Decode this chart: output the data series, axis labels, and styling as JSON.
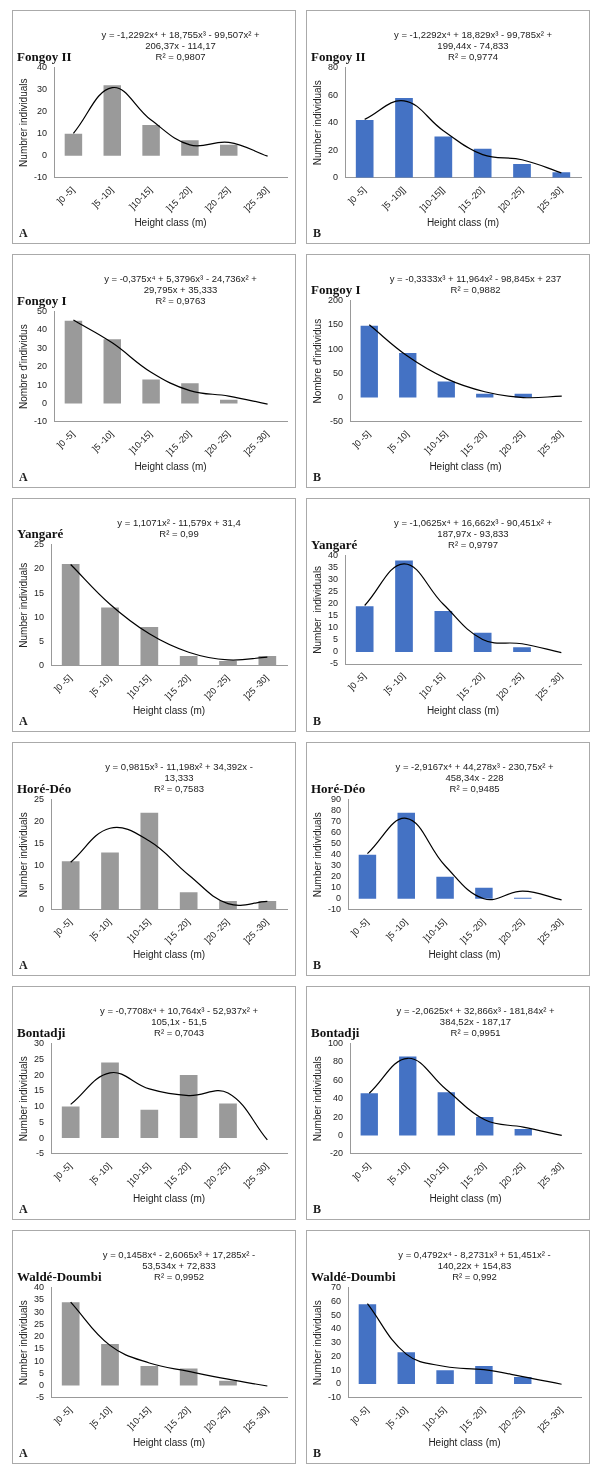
{
  "chart_data": [
    {
      "type": "bar",
      "title": "Fongoy II",
      "xlabel": "Height class (m)",
      "ylabel": "Numbrer individuals",
      "categories": [
        "]0 -5]",
        "]5 -10]",
        "]10-15]",
        "]15 -20]",
        "]20 -25]",
        "]25 -30]"
      ],
      "series": [
        {
          "color": "#9a9a9a",
          "values": [
            10,
            32,
            14,
            7,
            5,
            0
          ]
        },
        {
          "type": "line",
          "color": "#000000",
          "values": [
            10.2,
            30.9,
            16.2,
            4.9,
            6.1,
            -0.2
          ]
        }
      ],
      "ylim": [
        -10,
        40
      ],
      "yticks": [
        -10,
        0,
        10,
        20,
        30,
        40
      ],
      "marker": "none",
      "annotations": [
        "y = -1,2292x⁴ + 18,755x³ - 99,507x² +",
        "206,37x - 114,17",
        "R² = 0,9807",
        "A"
      ]
    },
    {
      "type": "bar",
      "title": "Fongoy II",
      "xlabel": "Height class (m)",
      "ylabel": "Number individuals",
      "categories": [
        "]0 -5]",
        "]5 -10]]",
        "]10-15]]",
        "]15 -20]",
        "]20 -25]",
        "]25 -30]"
      ],
      "series": [
        {
          "color": "#4472c4",
          "values": [
            42,
            58,
            30,
            21,
            10,
            4
          ]
        },
        {
          "type": "line",
          "color": "#000000",
          "values": [
            42.4,
            55.9,
            34.2,
            16.8,
            13.1,
            3.6
          ]
        }
      ],
      "ylim": [
        0,
        80
      ],
      "yticks": [
        0,
        20,
        40,
        60,
        80
      ],
      "marker": "none",
      "annotations": [
        "y = -1,2292x⁴ + 18,829x³ - 99,785x² +",
        "199,44x - 74,833",
        "R² = 0,9774",
        "B"
      ]
    },
    {
      "type": "bar",
      "title": "Fongoy I",
      "xlabel": "Height class (m)",
      "ylabel": "Nombre d'individus",
      "categories": [
        "]0 -5]",
        "]5 -10]",
        "]10-15]",
        "]15 -20]",
        "]20 -25]",
        "]25 -30]"
      ],
      "series": [
        {
          "color": "#9a9a9a",
          "values": [
            45,
            35,
            13,
            11,
            2,
            0
          ]
        },
        {
          "type": "line",
          "color": "#000000",
          "values": [
            45.4,
            33,
            17,
            7,
            4,
            -0.4
          ]
        }
      ],
      "ylim": [
        -10,
        50
      ],
      "yticks": [
        -10,
        0,
        10,
        20,
        30,
        40,
        50
      ],
      "marker": "none",
      "annotations": [
        "y = -0,375x⁴ + 5,3796x³ - 24,736x² +",
        "29,795x + 35,333",
        "R² = 0,9763",
        "A"
      ]
    },
    {
      "type": "bar",
      "title": "Fongoy I",
      "xlabel": "Height class (m)",
      "ylabel": "Nombre d'individus",
      "categories": [
        "]0 -5]",
        "]5 -10]",
        "]10-15]",
        "]15 -20]",
        "]20 -25]",
        "]25 -30]"
      ],
      "series": [
        {
          "color": "#4472c4",
          "values": [
            148,
            92,
            33,
            8,
            8,
            0
          ]
        },
        {
          "type": "line",
          "color": "#000000",
          "values": [
            150,
            85,
            39,
            12,
            0,
            3
          ]
        }
      ],
      "ylim": [
        -50,
        200
      ],
      "yticks": [
        -50,
        0,
        50,
        100,
        150,
        200
      ],
      "marker": "none",
      "annotations": [
        "y = -0,3333x³ + 11,964x² - 98,845x + 237",
        "R² = 0,9882",
        "B"
      ]
    },
    {
      "type": "bar",
      "title": "Yangaré",
      "xlabel": "Height class (m)",
      "ylabel": "Number individuals",
      "categories": [
        "]0 -5]",
        "]5 -10]",
        "]10-15]",
        "]15 -20]",
        "]20 -25]",
        "]25 -30]"
      ],
      "series": [
        {
          "color": "#9a9a9a",
          "values": [
            21,
            12,
            8,
            2,
            1,
            2
          ]
        },
        {
          "type": "line",
          "color": "#000000",
          "values": [
            20.9,
            12.7,
            6.6,
            2.8,
            1.2,
            1.8
          ]
        }
      ],
      "ylim": [
        0,
        25
      ],
      "yticks": [
        0,
        5,
        10,
        15,
        20,
        25
      ],
      "marker": "none",
      "annotations": [
        "y = 1,1071x² - 11,579x + 31,4",
        "R² = 0,99",
        "A"
      ]
    },
    {
      "type": "bar",
      "title": "Yangaré",
      "xlabel": "Height class (m)",
      "ylabel": "Number  individuals",
      "categories": [
        "]0 -5]",
        "]5 -10]",
        "]10- 15]",
        "]15 - 20]",
        "]20 - 25]",
        "]25 - 30]"
      ],
      "series": [
        {
          "color": "#4472c4",
          "values": [
            19,
            38,
            17,
            8,
            2,
            0
          ]
        },
        {
          "type": "line",
          "color": "#000000",
          "values": [
            19.3,
            36.6,
            19.8,
            5.2,
            3.4,
            -0.3
          ]
        }
      ],
      "ylim": [
        -5,
        40
      ],
      "yticks": [
        -5,
        0,
        5,
        10,
        15,
        20,
        25,
        30,
        35,
        40
      ],
      "marker": "none",
      "annotations": [
        "y = -1,0625x⁴ + 16,662x³ - 90,451x² +",
        "187,97x - 93,833",
        "R² = 0,9797",
        "B"
      ]
    },
    {
      "type": "bar",
      "title": "Horé-Déo",
      "xlabel": "Height class (m)",
      "ylabel": "Number individuals",
      "categories": [
        "]0 -5]",
        "]5 -10]",
        "]10-15]",
        "]15 -20]",
        "]20 -25]",
        "]25 -30]"
      ],
      "series": [
        {
          "color": "#9a9a9a",
          "values": [
            11,
            13,
            22,
            4,
            2,
            2
          ]
        },
        {
          "type": "line",
          "color": "#000000",
          "values": [
            10.8,
            18.5,
            15.6,
            7.9,
            1.4,
            1.9
          ]
        }
      ],
      "ylim": [
        0,
        25
      ],
      "yticks": [
        0,
        5,
        10,
        15,
        20,
        25
      ],
      "marker": "none",
      "annotations": [
        "y = 0,9815x³ - 11,198x² + 34,392x -",
        "13,333",
        "R² = 0,7583",
        "A"
      ]
    },
    {
      "type": "bar",
      "title": "Horé-Déo",
      "xlabel": "Height class (m)",
      "ylabel": "Number individuals",
      "categories": [
        "]0 -5]",
        "]5 -10]",
        "]10-15]",
        "]15 -20]",
        "]20 -25]",
        "]25 -30]"
      ],
      "series": [
        {
          "color": "#4472c4",
          "values": [
            40,
            78,
            20,
            10,
            1,
            0
          ]
        },
        {
          "type": "line",
          "color": "#000000",
          "values": [
            41,
            73,
            30,
            0,
            7,
            -1
          ]
        }
      ],
      "ylim": [
        -10,
        90
      ],
      "yticks": [
        -10,
        0,
        10,
        20,
        30,
        40,
        50,
        60,
        70,
        80,
        90
      ],
      "marker": "none",
      "annotations": [
        "y = -2,9167x⁴ + 44,278x³ - 230,75x² +",
        "458,34x - 228",
        "R² = 0,9485",
        "B"
      ]
    },
    {
      "type": "bar",
      "title": "Bontadji",
      "xlabel": "Height class (m)",
      "ylabel": "Number individuals",
      "categories": [
        "]0 -5]",
        "]5 -10]",
        "]10-15]",
        "]15 -20]",
        "]20 -25]",
        "]25 -30]"
      ],
      "series": [
        {
          "color": "#9a9a9a",
          "values": [
            10,
            24,
            9,
            20,
            11,
            0
          ]
        },
        {
          "type": "line",
          "color": "#000000",
          "values": [
            10.7,
            20.7,
            15.6,
            13.5,
            14.3,
            -0.6
          ]
        }
      ],
      "ylim": [
        -5,
        30
      ],
      "yticks": [
        -5,
        0,
        5,
        10,
        15,
        20,
        25,
        30
      ],
      "marker": "none",
      "annotations": [
        "y = -0,7708x⁴ + 10,764x³ - 52,937x² +",
        "105,1x - 51,5",
        "R² = 0,7043",
        "A"
      ]
    },
    {
      "type": "bar",
      "title": "Bontadji",
      "xlabel": "Height class (m)",
      "ylabel": "Number individuals",
      "categories": [
        "]0 -5]",
        "]5 -10]",
        "]10-15]",
        "]15 -20]",
        "]20 -25]",
        "]25 -30]"
      ],
      "series": [
        {
          "color": "#4472c4",
          "values": [
            46,
            86,
            47,
            20,
            7,
            0
          ]
        },
        {
          "type": "line",
          "color": "#000000",
          "values": [
            46,
            84,
            50,
            17,
            9,
            0
          ]
        }
      ],
      "ylim": [
        -20,
        100
      ],
      "yticks": [
        -20,
        0,
        20,
        40,
        60,
        80,
        100
      ],
      "marker": "none",
      "annotations": [
        "y = -2,0625x⁴ + 32,866x³ - 181,84x² +",
        "384,52x - 187,17",
        "R² = 0,9951",
        "B"
      ]
    },
    {
      "type": "bar",
      "title": "Waldé-Doumbi",
      "xlabel": "Height class (m)",
      "ylabel": "Number individuals",
      "categories": [
        "]0 -5]",
        "]5 -10]",
        "]10-15]",
        "]15 -20]",
        "]20 -25]",
        "]25 -30]"
      ],
      "series": [
        {
          "color": "#9a9a9a",
          "values": [
            34,
            17,
            8,
            7,
            2,
            0
          ]
        },
        {
          "type": "line",
          "color": "#000000",
          "values": [
            34.1,
            16.4,
            9.2,
            5.8,
            2.6,
            -0.2
          ]
        }
      ],
      "ylim": [
        -5,
        40
      ],
      "yticks": [
        -5,
        0,
        5,
        10,
        15,
        20,
        25,
        30,
        35,
        40
      ],
      "marker": "none",
      "annotations": [
        "y = 0,1458x⁴ - 2,6065x³ + 17,285x² -",
        "53,534x + 72,833",
        "R² = 0,9952",
        "A"
      ]
    },
    {
      "type": "bar",
      "title": "Waldé-Doumbi",
      "xlabel": "Height class (m)",
      "ylabel": "Number individuals",
      "categories": [
        "]0 -5]",
        "]5 -10]",
        "]10-15]",
        "]15 -20]",
        "]20 -25]",
        "]25 -30]"
      ],
      "series": [
        {
          "color": "#4472c4",
          "values": [
            58,
            23,
            10,
            13,
            5,
            0
          ]
        },
        {
          "type": "line",
          "color": "#000000",
          "values": [
            58.3,
            21.7,
            12.7,
            10.4,
            5.4,
            -0.2
          ]
        }
      ],
      "ylim": [
        -10,
        70
      ],
      "yticks": [
        -10,
        0,
        10,
        20,
        30,
        40,
        50,
        60,
        70
      ],
      "marker": "none",
      "annotations": [
        "y = 0,4792x⁴ - 8,2731x³ + 51,451x² -",
        "140,22x + 154,83",
        "R² = 0,992",
        "B"
      ]
    }
  ]
}
